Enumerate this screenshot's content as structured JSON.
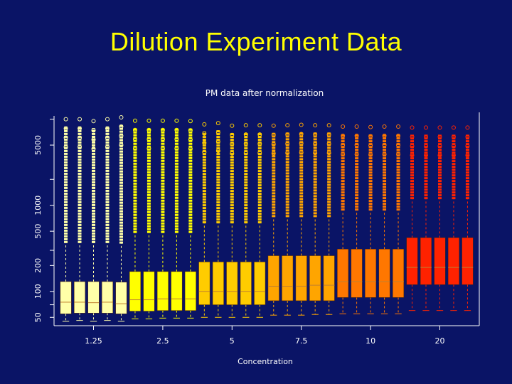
{
  "slide": {
    "title": "Dilution Experiment Data"
  },
  "chart_data": {
    "type": "boxplot",
    "title": "PM data after normalization",
    "xlabel": "Concentration",
    "ylabel": "",
    "y_scale": "log",
    "ylim": [
      40,
      12000
    ],
    "y_ticks": [
      50,
      100,
      200,
      500,
      1000,
      5000
    ],
    "x_ticks": [
      {
        "position": 3,
        "label": "1.25"
      },
      {
        "position": 8,
        "label": "2.5"
      },
      {
        "position": 13,
        "label": "5"
      },
      {
        "position": 18,
        "label": "7.5"
      },
      {
        "position": 23,
        "label": "10"
      },
      {
        "position": 28,
        "label": "20"
      }
    ],
    "box_count": 30,
    "group_colors": [
      "#ffffa8",
      "#ffff00",
      "#ffcc00",
      "#ffa500",
      "#ff7700",
      "#ff2200"
    ],
    "boxes": [
      {
        "group": 0,
        "min": 45,
        "q1": 55,
        "median": 75,
        "q3": 130,
        "max": 10000
      },
      {
        "group": 0,
        "min": 46,
        "q1": 56,
        "median": 75,
        "q3": 130,
        "max": 10000
      },
      {
        "group": 0,
        "min": 45,
        "q1": 56,
        "median": 74,
        "q3": 130,
        "max": 9500
      },
      {
        "group": 0,
        "min": 46,
        "q1": 56,
        "median": 75,
        "q3": 130,
        "max": 10000
      },
      {
        "group": 0,
        "min": 45,
        "q1": 55,
        "median": 72,
        "q3": 128,
        "max": 10500
      },
      {
        "group": 1,
        "min": 48,
        "q1": 59,
        "median": 80,
        "q3": 170,
        "max": 9600
      },
      {
        "group": 1,
        "min": 48,
        "q1": 59,
        "median": 80,
        "q3": 170,
        "max": 9600
      },
      {
        "group": 1,
        "min": 49,
        "q1": 60,
        "median": 82,
        "q3": 170,
        "max": 9600
      },
      {
        "group": 1,
        "min": 49,
        "q1": 60,
        "median": 82,
        "q3": 170,
        "max": 9600
      },
      {
        "group": 1,
        "min": 49,
        "q1": 60,
        "median": 82,
        "q3": 170,
        "max": 9500
      },
      {
        "group": 2,
        "min": 50,
        "q1": 70,
        "median": 100,
        "q3": 220,
        "max": 8700
      },
      {
        "group": 2,
        "min": 50,
        "q1": 70,
        "median": 100,
        "q3": 220,
        "max": 9000
      },
      {
        "group": 2,
        "min": 50,
        "q1": 70,
        "median": 100,
        "q3": 220,
        "max": 8400
      },
      {
        "group": 2,
        "min": 50,
        "q1": 70,
        "median": 100,
        "q3": 220,
        "max": 8500
      },
      {
        "group": 2,
        "min": 50,
        "q1": 70,
        "median": 100,
        "q3": 220,
        "max": 8500
      },
      {
        "group": 3,
        "min": 53,
        "q1": 78,
        "median": 115,
        "q3": 260,
        "max": 8400
      },
      {
        "group": 3,
        "min": 53,
        "q1": 78,
        "median": 115,
        "q3": 260,
        "max": 8500
      },
      {
        "group": 3,
        "min": 53,
        "q1": 78,
        "median": 115,
        "q3": 260,
        "max": 8600
      },
      {
        "group": 3,
        "min": 54,
        "q1": 78,
        "median": 118,
        "q3": 260,
        "max": 8500
      },
      {
        "group": 3,
        "min": 54,
        "q1": 78,
        "median": 118,
        "q3": 260,
        "max": 8500
      },
      {
        "group": 4,
        "min": 55,
        "q1": 85,
        "median": 130,
        "q3": 310,
        "max": 8200
      },
      {
        "group": 4,
        "min": 55,
        "q1": 85,
        "median": 130,
        "q3": 310,
        "max": 8200
      },
      {
        "group": 4,
        "min": 55,
        "q1": 85,
        "median": 130,
        "q3": 310,
        "max": 8100
      },
      {
        "group": 4,
        "min": 55,
        "q1": 85,
        "median": 130,
        "q3": 310,
        "max": 8200
      },
      {
        "group": 4,
        "min": 55,
        "q1": 85,
        "median": 130,
        "q3": 310,
        "max": 8200
      },
      {
        "group": 5,
        "min": 60,
        "q1": 120,
        "median": 190,
        "q3": 420,
        "max": 8000
      },
      {
        "group": 5,
        "min": 60,
        "q1": 120,
        "median": 190,
        "q3": 420,
        "max": 8000
      },
      {
        "group": 5,
        "min": 60,
        "q1": 120,
        "median": 190,
        "q3": 420,
        "max": 8000
      },
      {
        "group": 5,
        "min": 60,
        "q1": 120,
        "median": 190,
        "q3": 420,
        "max": 8000
      },
      {
        "group": 5,
        "min": 60,
        "q1": 120,
        "median": 190,
        "q3": 420,
        "max": 8000
      }
    ]
  }
}
